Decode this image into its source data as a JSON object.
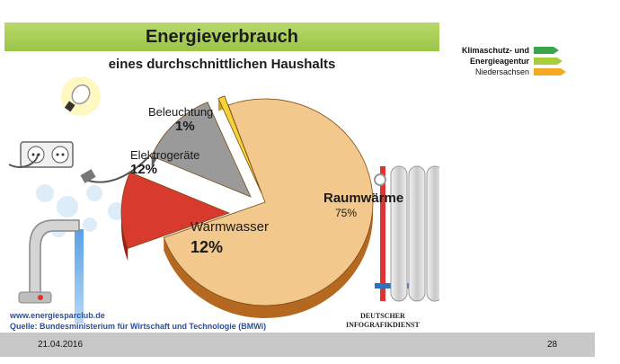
{
  "slide": {
    "title": "Energieverbrauch",
    "subtitle": "eines durchschnittlichen Haushalts",
    "footer_link": "www.energiesparclub.de",
    "footer_source": "Quelle: Bundesministerium für Wirtschaft und Technologie (BMWi)",
    "publisher_line1": "Deutscher",
    "publisher_line2": "Infografikdienst"
  },
  "logo": {
    "line1": "Klimaschutz- und",
    "line2": "Energieagentur",
    "line3": "Niedersachsen",
    "colors": [
      "#3aa54a",
      "#a6ce39",
      "#f7a823"
    ]
  },
  "footer": {
    "date": "21.04.2016",
    "page_number": "28"
  },
  "chart_data": {
    "type": "pie",
    "title": "Energieverbrauch",
    "subtitle": "eines durchschnittlichen Haushalts",
    "slices": [
      {
        "label": "Raumwärme",
        "value": 75,
        "value_label": "75%",
        "color": "#f2c88c"
      },
      {
        "label": "Warmwasser",
        "value": 12,
        "value_label": "12%",
        "color": "#d93a2e"
      },
      {
        "label": "Elektrogeräte",
        "value": 12,
        "value_label": "12%",
        "color": "#9a9a9a"
      },
      {
        "label": "Beleuchtung",
        "value": 1,
        "value_label": "1%",
        "color": "#f4d23c"
      }
    ]
  }
}
